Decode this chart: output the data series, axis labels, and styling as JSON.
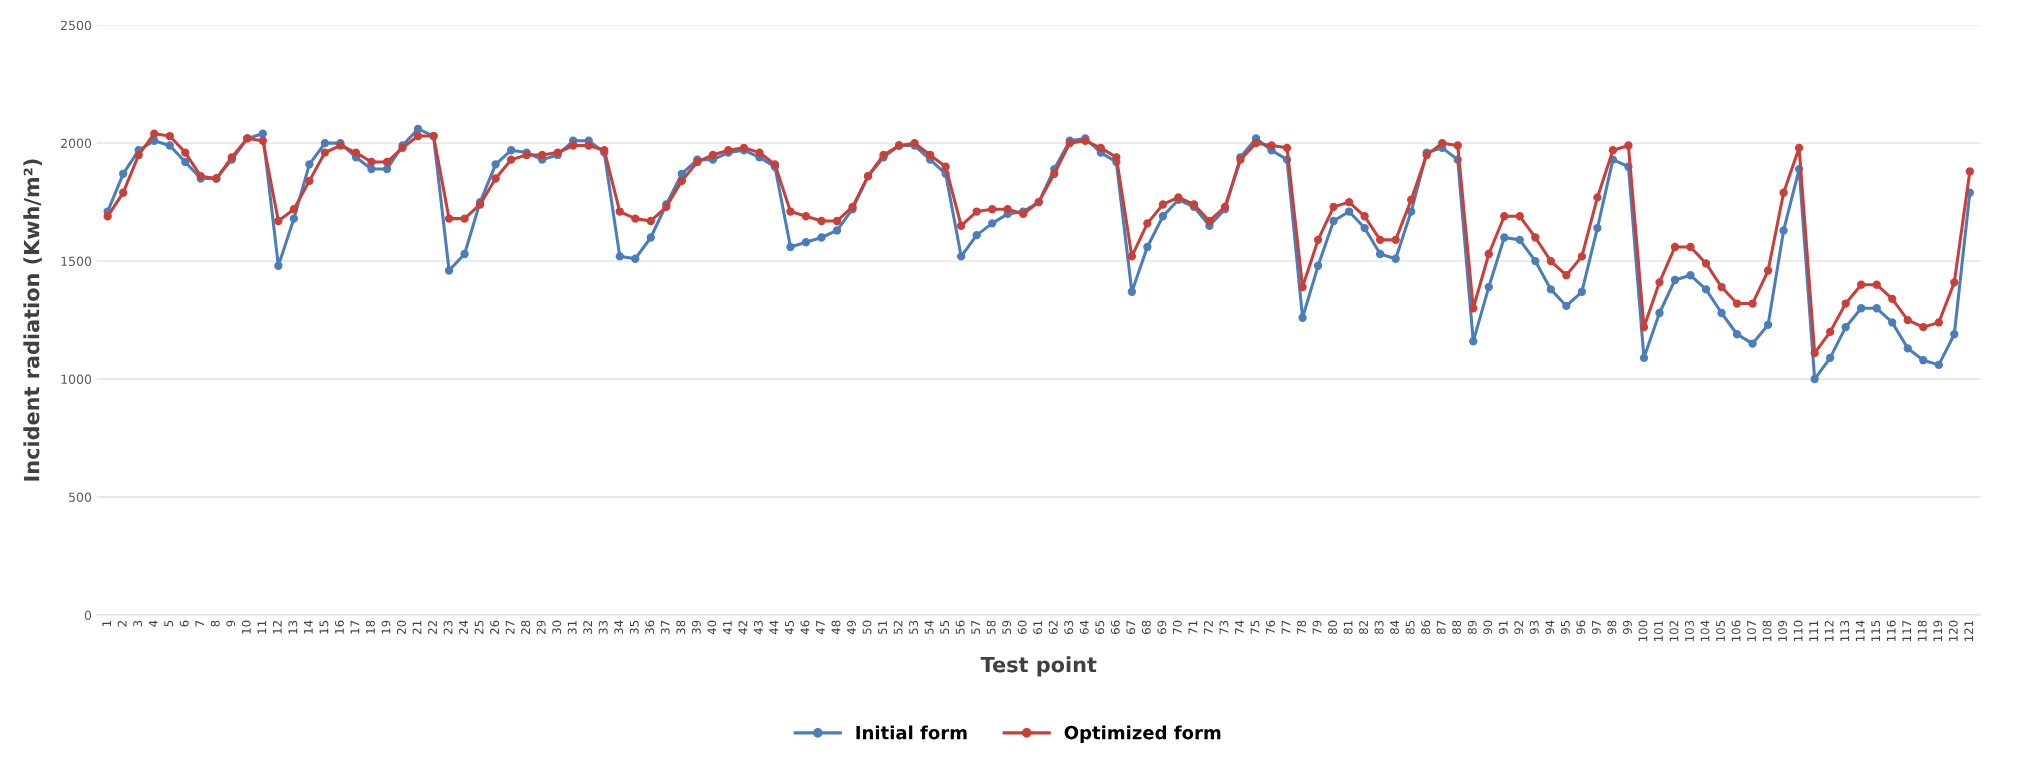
{
  "chart_data": {
    "type": "line",
    "xlabel": "Test point",
    "ylabel": "Incident radiation (Kwh/m²)",
    "categories": [
      "1",
      "2",
      "3",
      "4",
      "5",
      "6",
      "7",
      "8",
      "9",
      "10",
      "11",
      "12",
      "13",
      "14",
      "15",
      "16",
      "17",
      "18",
      "19",
      "20",
      "21",
      "22",
      "23",
      "24",
      "25",
      "26",
      "27",
      "28",
      "29",
      "30",
      "31",
      "32",
      "33",
      "34",
      "35",
      "36",
      "37",
      "38",
      "39",
      "40",
      "41",
      "42",
      "43",
      "44",
      "45",
      "46",
      "47",
      "48",
      "49",
      "50",
      "51",
      "52",
      "53",
      "54",
      "55",
      "56",
      "57",
      "58",
      "59",
      "60",
      "61",
      "62",
      "63",
      "64",
      "65",
      "66",
      "67",
      "68",
      "69",
      "70",
      "71",
      "72",
      "73",
      "74",
      "75",
      "76",
      "77",
      "78",
      "79",
      "80",
      "81",
      "82",
      "83",
      "84",
      "85",
      "86",
      "87",
      "88",
      "89",
      "90",
      "91",
      "92",
      "93",
      "94",
      "95",
      "96",
      "97",
      "98",
      "99",
      "100",
      "101",
      "102",
      "103",
      "104",
      "105",
      "106",
      "107",
      "108",
      "109",
      "110",
      "111",
      "112",
      "113",
      "114",
      "115",
      "116",
      "117",
      "118",
      "119",
      "120",
      "121"
    ],
    "series": [
      {
        "name": "Initial form",
        "color": "#4a7ebb",
        "values": [
          1710,
          1870,
          1970,
          2010,
          1990,
          1920,
          1850,
          1850,
          1930,
          2020,
          2040,
          1480,
          1680,
          1910,
          2000,
          2000,
          1940,
          1890,
          1890,
          1990,
          2060,
          2030,
          1460,
          1530,
          1750,
          1910,
          1970,
          1960,
          1930,
          1950,
          2010,
          2010,
          1960,
          1520,
          1510,
          1600,
          1740,
          1870,
          1930,
          1930,
          1960,
          1970,
          1940,
          1900,
          1560,
          1580,
          1600,
          1630,
          1720,
          1860,
          1940,
          1990,
          1990,
          1930,
          1870,
          1520,
          1610,
          1660,
          1700,
          1710,
          1750,
          1890,
          2010,
          2020,
          1960,
          1920,
          1370,
          1560,
          1690,
          1760,
          1730,
          1650,
          1720,
          1940,
          2020,
          1970,
          1930,
          1260,
          1480,
          1670,
          1710,
          1640,
          1530,
          1510,
          1710,
          1960,
          1980,
          1930,
          1160,
          1390,
          1600,
          1590,
          1500,
          1380,
          1310,
          1370,
          1640,
          1930,
          1900,
          1090,
          1280,
          1420,
          1440,
          1380,
          1280,
          1190,
          1150,
          1230,
          1630,
          1890,
          1000,
          1090,
          1220,
          1300,
          1300,
          1240,
          1130,
          1080,
          1060,
          1190,
          1790
        ]
      },
      {
        "name": "Optimized form",
        "color": "#c9403a",
        "values": [
          1690,
          1790,
          1950,
          2040,
          2030,
          1960,
          1860,
          1850,
          1940,
          2020,
          2010,
          1670,
          1720,
          1840,
          1960,
          1990,
          1960,
          1920,
          1920,
          1980,
          2030,
          2030,
          1680,
          1680,
          1740,
          1850,
          1930,
          1950,
          1950,
          1960,
          1990,
          1990,
          1970,
          1710,
          1680,
          1670,
          1730,
          1840,
          1920,
          1950,
          1970,
          1980,
          1960,
          1910,
          1710,
          1690,
          1670,
          1670,
          1730,
          1860,
          1950,
          1990,
          2000,
          1950,
          1900,
          1650,
          1710,
          1720,
          1720,
          1700,
          1750,
          1870,
          2000,
          2010,
          1980,
          1940,
          1520,
          1660,
          1740,
          1770,
          1740,
          1670,
          1730,
          1930,
          2000,
          1990,
          1980,
          1390,
          1590,
          1730,
          1750,
          1690,
          1590,
          1590,
          1760,
          1950,
          2000,
          1990,
          1300,
          1530,
          1690,
          1690,
          1600,
          1500,
          1440,
          1520,
          1770,
          1970,
          1990,
          1220,
          1410,
          1560,
          1560,
          1490,
          1390,
          1320,
          1320,
          1460,
          1790,
          1980,
          1110,
          1200,
          1320,
          1400,
          1400,
          1340,
          1250,
          1220,
          1240,
          1410,
          1880
        ]
      }
    ],
    "ylim": [
      0,
      2500
    ],
    "yticks": [
      0,
      500,
      1000,
      1500,
      2000,
      2500
    ],
    "grid": "y",
    "legend": "bottom",
    "marker": "circle",
    "line_style": "solid"
  }
}
